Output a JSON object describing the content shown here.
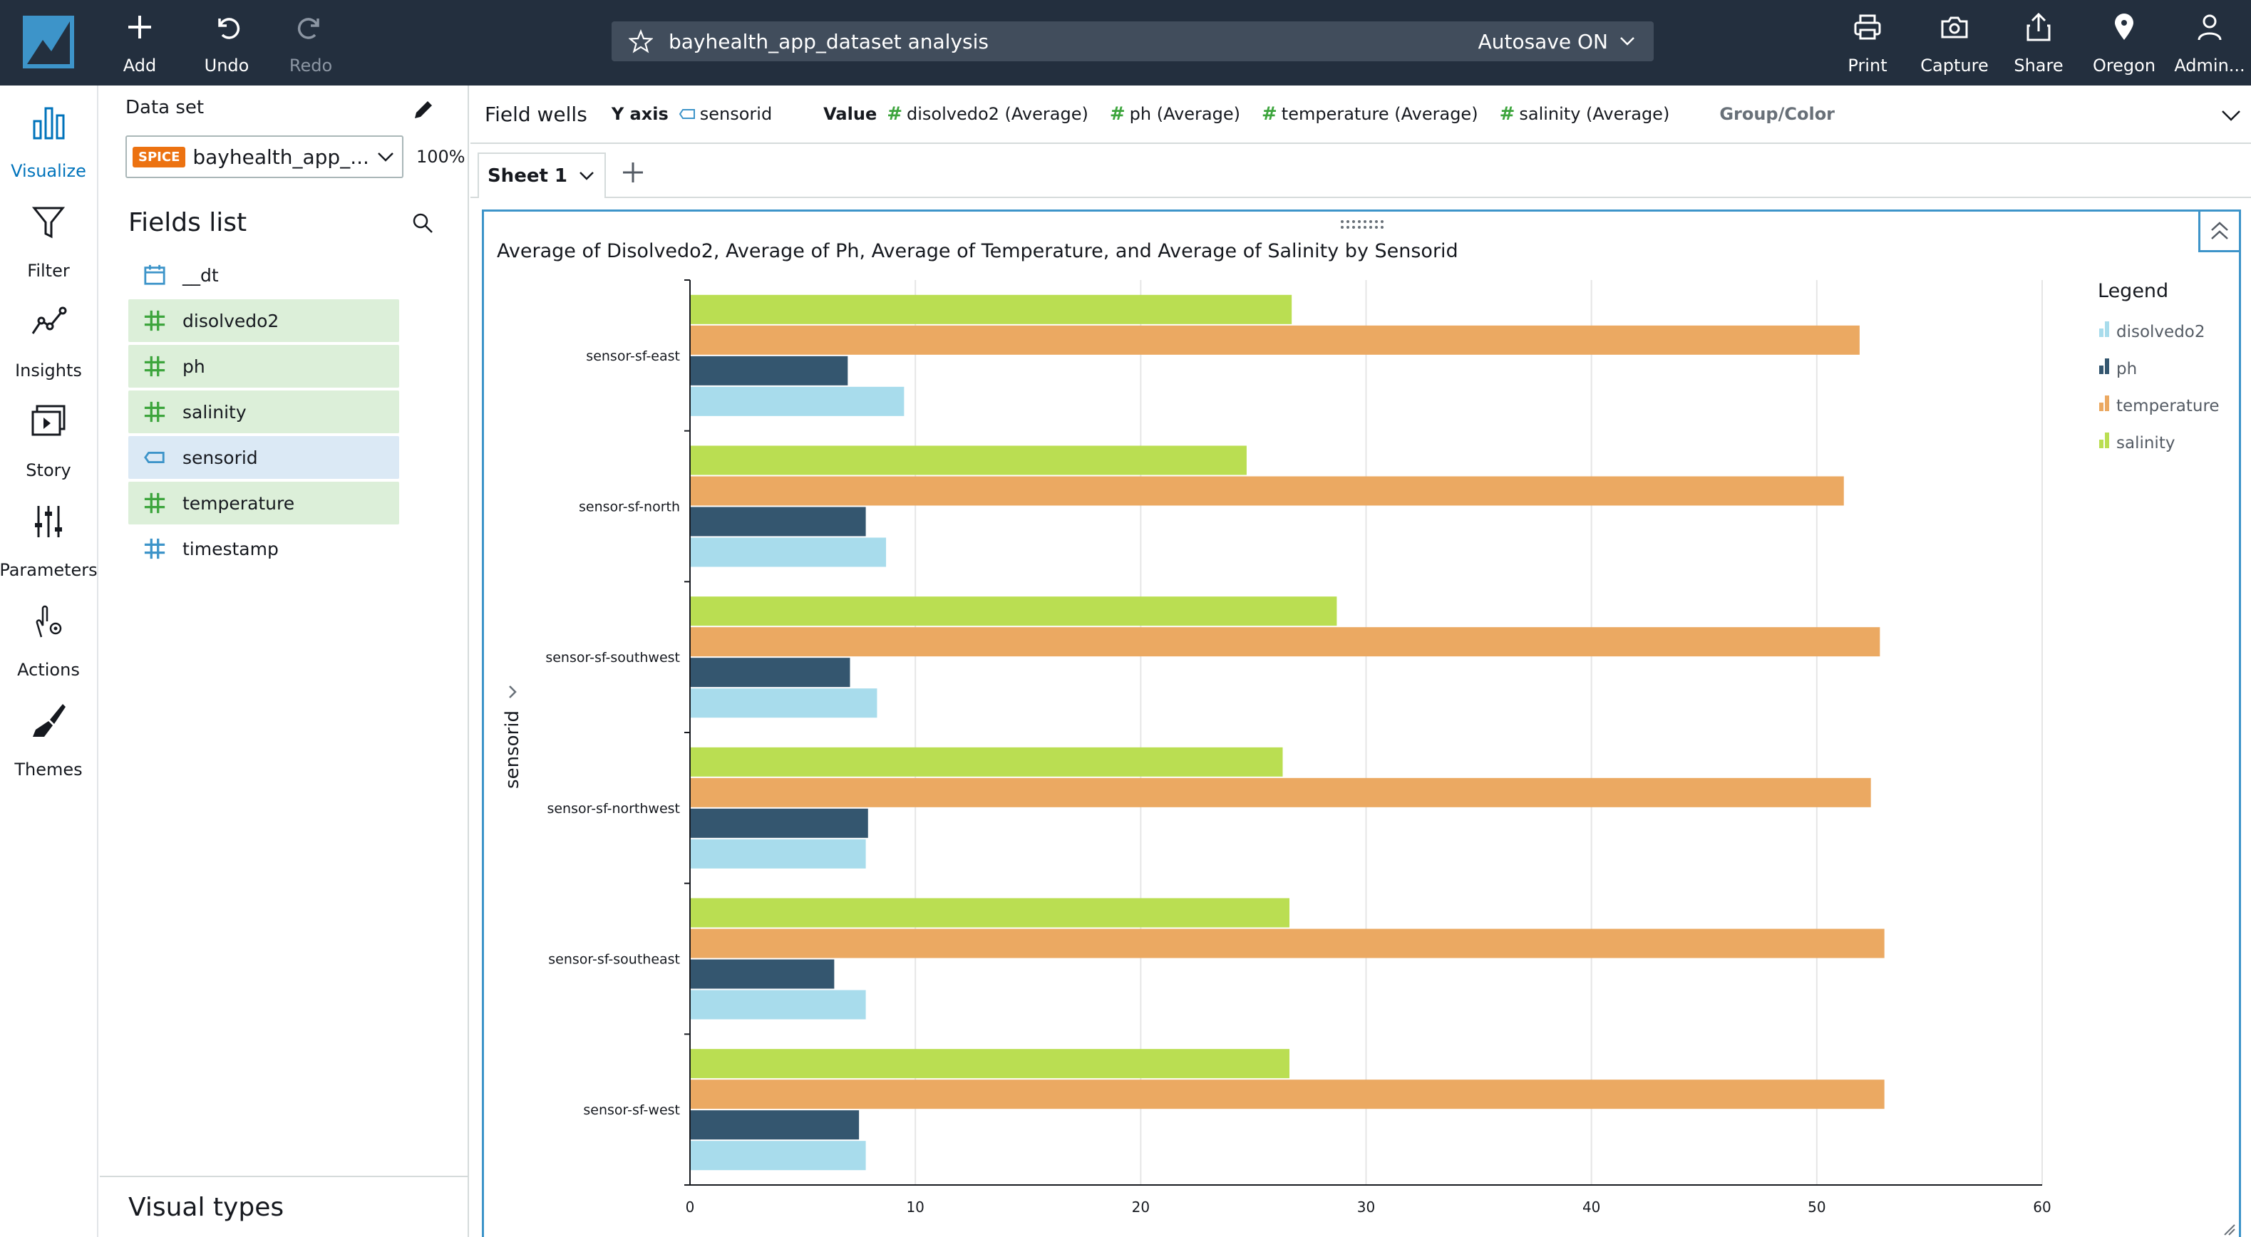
{
  "topbar": {
    "add_label": "Add",
    "undo_label": "Undo",
    "redo_label": "Redo",
    "analysis_title": "bayhealth_app_dataset analysis",
    "autosave_label": "Autosave ON",
    "print_label": "Print",
    "capture_label": "Capture",
    "share_label": "Share",
    "region_label": "Oregon",
    "user_label": "Admin..."
  },
  "rail": {
    "items": [
      {
        "label": "Visualize",
        "icon": "bar-chart-icon",
        "active": true
      },
      {
        "label": "Filter",
        "icon": "filter-icon"
      },
      {
        "label": "Insights",
        "icon": "insights-icon"
      },
      {
        "label": "Story",
        "icon": "story-icon"
      },
      {
        "label": "Parameters",
        "icon": "sliders-icon"
      },
      {
        "label": "Actions",
        "icon": "actions-icon"
      },
      {
        "label": "Themes",
        "icon": "brush-icon"
      }
    ]
  },
  "dataset": {
    "label": "Data set",
    "badge": "SPICE",
    "name": "bayhealth_app_...",
    "percent": "100%"
  },
  "fields": {
    "title": "Fields list",
    "items": [
      {
        "name": "__dt",
        "type": "date"
      },
      {
        "name": "disolvedo2",
        "type": "measure"
      },
      {
        "name": "ph",
        "type": "measure"
      },
      {
        "name": "salinity",
        "type": "measure"
      },
      {
        "name": "sensorid",
        "type": "dimension"
      },
      {
        "name": "temperature",
        "type": "measure"
      },
      {
        "name": "timestamp",
        "type": "number"
      }
    ]
  },
  "visual_types": {
    "label": "Visual types"
  },
  "field_wells": {
    "label": "Field wells",
    "y_axis_key": "Y axis",
    "y_axis_value": "sensorid",
    "value_key": "Value",
    "values": [
      "disolvedo2 (Average)",
      "ph (Average)",
      "temperature (Average)",
      "salinity (Average)"
    ],
    "group_color": "Group/Color"
  },
  "sheet": {
    "tab_label": "Sheet 1"
  },
  "colors": {
    "disolvedo2": "#a8dcec",
    "ph": "#34566f",
    "temperature": "#eba962",
    "salinity": "#bade52",
    "accent": "#0073bb",
    "topbar": "#232f3e"
  },
  "chart_data": {
    "type": "bar",
    "orientation": "horizontal",
    "title": "Average of Disolvedo2, Average of Ph, Average of Temperature, and Average of Salinity by Sensorid",
    "ylabel": "sensorid",
    "xlabel": "",
    "xlim": [
      0,
      60
    ],
    "xticks": [
      0,
      10,
      20,
      30,
      40,
      50,
      60
    ],
    "grid": true,
    "legend_title": "Legend",
    "legend_position": "right",
    "categories": [
      "sensor-sf-east",
      "sensor-sf-north",
      "sensor-sf-southwest",
      "sensor-sf-northwest",
      "sensor-sf-southeast",
      "sensor-sf-west"
    ],
    "series": [
      {
        "name": "disolvedo2",
        "values": [
          9.5,
          8.7,
          8.3,
          7.8,
          7.8,
          7.8
        ]
      },
      {
        "name": "ph",
        "values": [
          7.0,
          7.8,
          7.1,
          7.9,
          6.4,
          7.5
        ]
      },
      {
        "name": "temperature",
        "values": [
          51.9,
          51.2,
          52.8,
          52.4,
          53.0,
          53.0
        ]
      },
      {
        "name": "salinity",
        "values": [
          26.7,
          24.7,
          28.7,
          26.3,
          26.6,
          26.6
        ]
      }
    ]
  }
}
